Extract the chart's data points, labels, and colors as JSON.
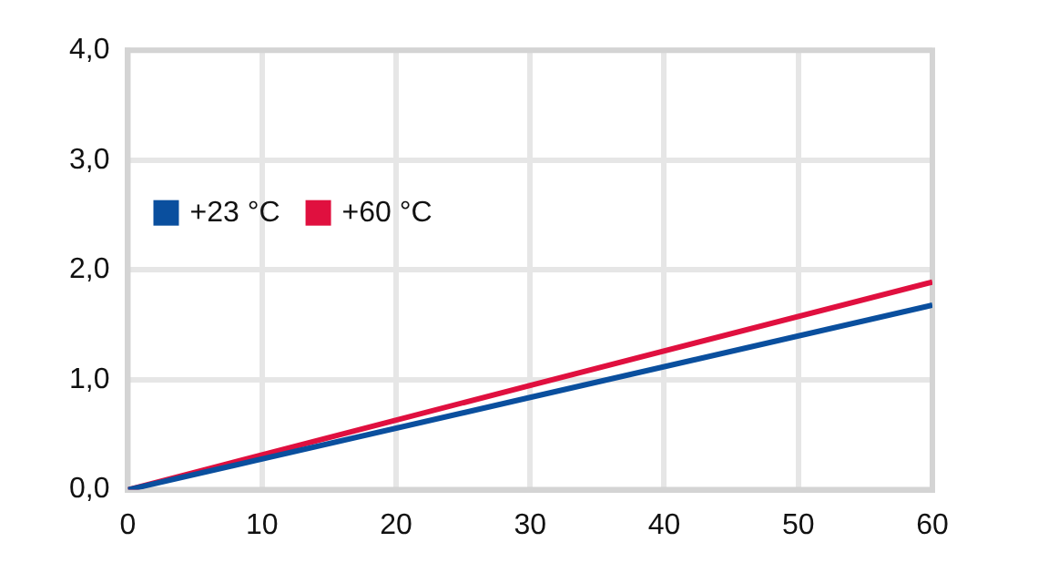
{
  "chart_data": {
    "type": "line",
    "x": [
      0,
      30,
      60
    ],
    "series": [
      {
        "name": "+23 °C",
        "color": "#0a4f9e",
        "values": [
          0,
          0.84,
          1.68
        ]
      },
      {
        "name": "+60 °C",
        "color": "#e0103f",
        "values": [
          0,
          0.95,
          1.89
        ]
      }
    ],
    "xlim": [
      0,
      60
    ],
    "xticks": [
      0,
      10,
      20,
      30,
      40,
      50,
      60
    ],
    "ylim": [
      0,
      4
    ],
    "yticks": [
      {
        "value": 0,
        "label": "0,0"
      },
      {
        "value": 1,
        "label": "1,0"
      },
      {
        "value": 2,
        "label": "2,0"
      },
      {
        "value": 3,
        "label": "3,0"
      },
      {
        "value": 4,
        "label": "4,0"
      }
    ],
    "grid": true,
    "legend": "top left",
    "marker": "none",
    "line_style": "solid"
  }
}
